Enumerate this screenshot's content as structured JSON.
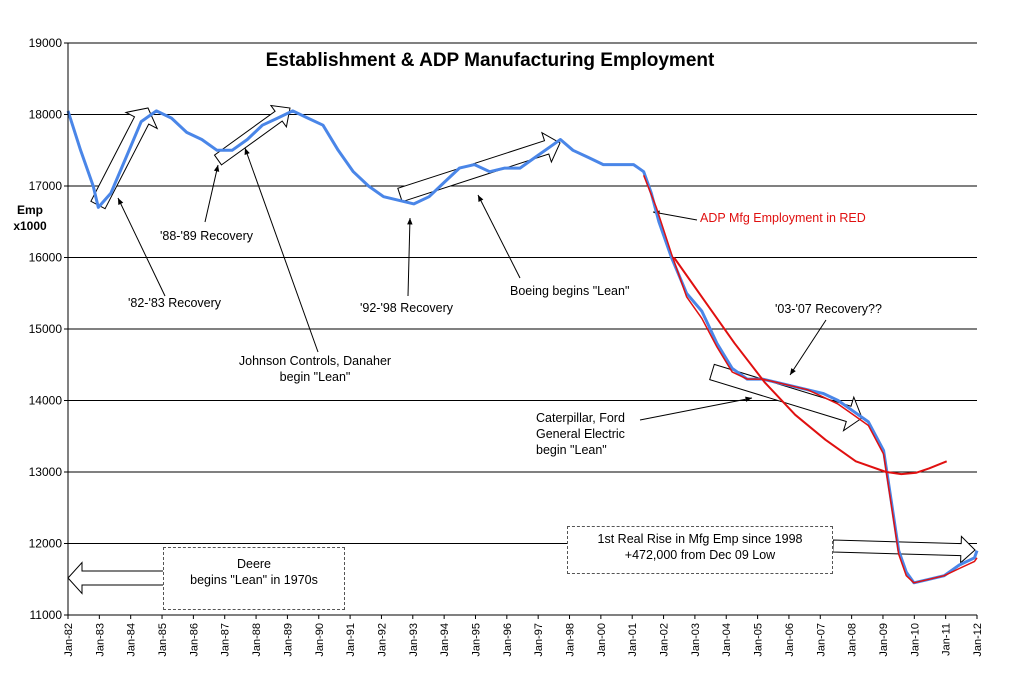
{
  "chart_data": {
    "type": "line",
    "title": "Establishment & ADP Manufacturing Employment",
    "ylabel": "Emp x1000",
    "xlabel": "",
    "ylim": [
      11000,
      19000
    ],
    "yticks": [
      11000,
      12000,
      13000,
      14000,
      15000,
      16000,
      17000,
      18000,
      19000
    ],
    "x_range": [
      "1982-01",
      "2012-01"
    ],
    "xtick_labels": [
      "Jan-82",
      "Jan-83",
      "Jan-84",
      "Jan-85",
      "Jan-86",
      "Jan-87",
      "Jan-88",
      "Jan-89",
      "Jan-90",
      "Jan-91",
      "Jan-92",
      "Jan-93",
      "Jan-94",
      "Jan-95",
      "Jan-96",
      "Jan-97",
      "Jan-98",
      "Jan-00",
      "Jan-01",
      "Jan-02",
      "Jan-03",
      "Jan-04",
      "Jan-05",
      "Jan-06",
      "Jan-07",
      "Jan-08",
      "Jan-09",
      "Jan-10",
      "Jan-11",
      "Jan-12"
    ],
    "grid": "horizontal",
    "series": [
      {
        "name": "",
        "color": "#4a86e8",
        "points": [
          [
            "1982-01",
            18050
          ],
          [
            "1982-06",
            17500
          ],
          [
            "1982-11",
            17000
          ],
          [
            "1983-01",
            16700
          ],
          [
            "1983-06",
            16900
          ],
          [
            "1983-12",
            17400
          ],
          [
            "1984-06",
            17900
          ],
          [
            "1984-12",
            18050
          ],
          [
            "1985-06",
            17950
          ],
          [
            "1985-12",
            17750
          ],
          [
            "1986-06",
            17650
          ],
          [
            "1986-12",
            17500
          ],
          [
            "1987-06",
            17500
          ],
          [
            "1987-12",
            17650
          ],
          [
            "1988-06",
            17850
          ],
          [
            "1988-12",
            17950
          ],
          [
            "1989-06",
            18050
          ],
          [
            "1989-12",
            17950
          ],
          [
            "1990-06",
            17850
          ],
          [
            "1990-12",
            17500
          ],
          [
            "1991-06",
            17200
          ],
          [
            "1991-12",
            17000
          ],
          [
            "1992-06",
            16850
          ],
          [
            "1992-12",
            16800
          ],
          [
            "1993-06",
            16750
          ],
          [
            "1993-12",
            16850
          ],
          [
            "1994-06",
            17050
          ],
          [
            "1994-12",
            17250
          ],
          [
            "1995-06",
            17300
          ],
          [
            "1995-12",
            17200
          ],
          [
            "1996-06",
            17250
          ],
          [
            "1996-12",
            17250
          ],
          [
            "1997-06",
            17400
          ],
          [
            "1997-12",
            17550
          ],
          [
            "1998-04",
            17650
          ],
          [
            "1998-09",
            17500
          ],
          [
            "1999-03",
            17400
          ],
          [
            "1999-09",
            17300
          ],
          [
            "2000-03",
            17300
          ],
          [
            "2000-09",
            17300
          ],
          [
            "2001-01",
            17200
          ],
          [
            "2001-04",
            16900
          ],
          [
            "2001-07",
            16500
          ],
          [
            "2001-12",
            16000
          ],
          [
            "2002-06",
            15500
          ],
          [
            "2002-12",
            15250
          ],
          [
            "2003-06",
            14800
          ],
          [
            "2003-12",
            14450
          ],
          [
            "2004-06",
            14300
          ],
          [
            "2004-12",
            14300
          ],
          [
            "2005-06",
            14250
          ],
          [
            "2005-12",
            14200
          ],
          [
            "2006-06",
            14150
          ],
          [
            "2006-12",
            14100
          ],
          [
            "2007-06",
            14000
          ],
          [
            "2007-12",
            13850
          ],
          [
            "2008-06",
            13700
          ],
          [
            "2008-12",
            13300
          ],
          [
            "2009-03",
            12600
          ],
          [
            "2009-06",
            11900
          ],
          [
            "2009-09",
            11600
          ],
          [
            "2009-12",
            11450
          ],
          [
            "2010-06",
            11500
          ],
          [
            "2010-12",
            11550
          ],
          [
            "2011-06",
            11700
          ],
          [
            "2011-12",
            11800
          ],
          [
            "2012-01",
            11900
          ]
        ]
      },
      {
        "name": "ADP Mfg Employment in RED",
        "color": "#e01010",
        "points": [
          [
            "2001-01",
            17150
          ],
          [
            "2001-06",
            16700
          ],
          [
            "2001-12",
            16050
          ],
          [
            "2002-06",
            15450
          ],
          [
            "2002-12",
            15150
          ],
          [
            "2003-06",
            14750
          ],
          [
            "2003-12",
            14400
          ],
          [
            "2004-06",
            14300
          ],
          [
            "2004-12",
            14300
          ],
          [
            "2005-06",
            14250
          ],
          [
            "2005-12",
            14200
          ],
          [
            "2006-06",
            14150
          ],
          [
            "2006-12",
            14050
          ],
          [
            "2007-06",
            13950
          ],
          [
            "2007-12",
            13800
          ],
          [
            "2008-06",
            13650
          ],
          [
            "2008-12",
            13250
          ],
          [
            "2009-03",
            12550
          ],
          [
            "2009-06",
            11850
          ],
          [
            "2009-09",
            11550
          ],
          [
            "2009-12",
            11450
          ],
          [
            "2010-06",
            11500
          ],
          [
            "2010-12",
            11550
          ],
          [
            "2011-06",
            11650
          ],
          [
            "2011-12",
            11750
          ],
          [
            "2012-01",
            11800
          ]
        ]
      },
      {
        "name": "",
        "color": "#e01010",
        "points": [
          [
            "2002-01",
            16000
          ],
          [
            "2003-01",
            15400
          ],
          [
            "2004-01",
            14800
          ],
          [
            "2005-01",
            14250
          ],
          [
            "2006-01",
            13800
          ],
          [
            "2007-01",
            13450
          ],
          [
            "2008-01",
            13150
          ],
          [
            "2009-01",
            13000
          ],
          [
            "2009-07",
            12970
          ],
          [
            "2010-01",
            12990
          ],
          [
            "2010-06",
            13050
          ],
          [
            "2011-01",
            13150
          ]
        ]
      }
    ],
    "annotations": [
      {
        "id": "a8283",
        "text": "'82-'83 Recovery"
      },
      {
        "id": "a8889",
        "text": "'88-'89 Recovery"
      },
      {
        "id": "a9298",
        "text": "'92-'98 Recovery"
      },
      {
        "id": "aboeing",
        "text": "Boeing begins \"Lean\""
      },
      {
        "id": "ajci",
        "text": "Johnson Controls, Danaher begin \"Lean\""
      },
      {
        "id": "aadp",
        "text": "ADP Mfg Employment in RED"
      },
      {
        "id": "a0307",
        "text": "'03-'07 Recovery??"
      },
      {
        "id": "acat",
        "text": "Caterpillar, Ford General Electric begin \"Lean\""
      },
      {
        "id": "adeere",
        "text": "Deere begins \"Lean\" in 1970s"
      },
      {
        "id": "arise",
        "text": "1st Real Rise in Mfg Emp since 1998 +472,000 from Dec 09 Low"
      }
    ]
  },
  "texts": {
    "ann_8283": "'82-'83 Recovery",
    "ann_8889": "'88-'89 Recovery",
    "ann_9298": "'92-'98 Recovery",
    "ann_boeing": "Boeing begins \"Lean\"",
    "ann_jci_1": "Johnson Controls, Danaher",
    "ann_jci_2": "begin \"Lean\"",
    "ann_adp": "ADP Mfg Employment in RED",
    "ann_0307": "'03-'07 Recovery??",
    "ann_cat_1": "Caterpillar, Ford",
    "ann_cat_2": "General Electric",
    "ann_cat_3": "begin \"Lean\"",
    "ann_deere_1": "Deere",
    "ann_deere_2": "begins \"Lean\" in 1970s",
    "ann_rise_1": "1st Real Rise in Mfg Emp since 1998",
    "ann_rise_2": "+472,000 from Dec 09 Low",
    "ylabel_1": "Emp",
    "ylabel_2": "x1000"
  }
}
